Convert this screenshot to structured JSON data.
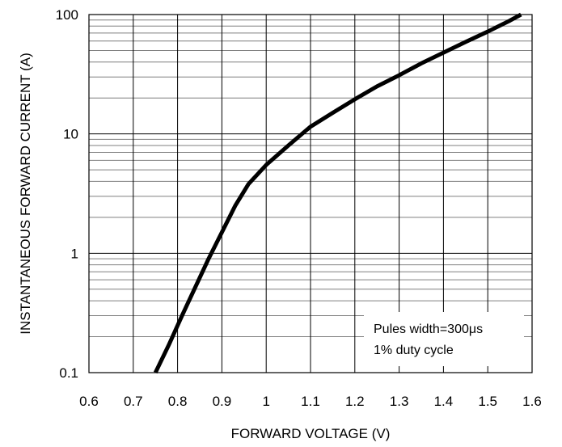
{
  "chart_data": {
    "type": "line",
    "title": "",
    "xlabel": "FORWARD VOLTAGE (V)",
    "ylabel": "INSTANTANEOUS FORWARD CURRENT (A)",
    "xlim": [
      0.6,
      1.6
    ],
    "ylim": [
      0.1,
      100
    ],
    "y_scale": "log",
    "grid": true,
    "x_ticks": [
      0.6,
      0.7,
      0.8,
      0.9,
      1.0,
      1.1,
      1.2,
      1.3,
      1.4,
      1.5,
      1.6
    ],
    "x_tick_labels": [
      "0.6",
      "0.7",
      "0.8",
      "0.9",
      "1",
      "1.1",
      "1.2",
      "1.3",
      "1.4",
      "1.5",
      "1.6"
    ],
    "y_ticks": [
      0.1,
      1,
      10,
      100
    ],
    "y_tick_labels": [
      "0.1",
      "1",
      "10",
      "100"
    ],
    "series": [
      {
        "x": [
          0.75,
          0.78,
          0.81,
          0.84,
          0.87,
          0.9,
          0.93,
          0.96,
          1.0,
          1.05,
          1.1,
          1.15,
          1.2,
          1.25,
          1.3,
          1.35,
          1.4,
          1.45,
          1.5,
          1.55,
          1.575
        ],
        "y": [
          0.1,
          0.17,
          0.3,
          0.52,
          0.9,
          1.5,
          2.5,
          3.8,
          5.5,
          8.0,
          11.5,
          15.0,
          19.5,
          25.0,
          31.0,
          39.0,
          48.0,
          59.0,
          72.0,
          89.0,
          100.0
        ],
        "color": "#000000"
      }
    ],
    "annotations": [
      "Pules width=300μs",
      "1% duty cycle"
    ]
  }
}
